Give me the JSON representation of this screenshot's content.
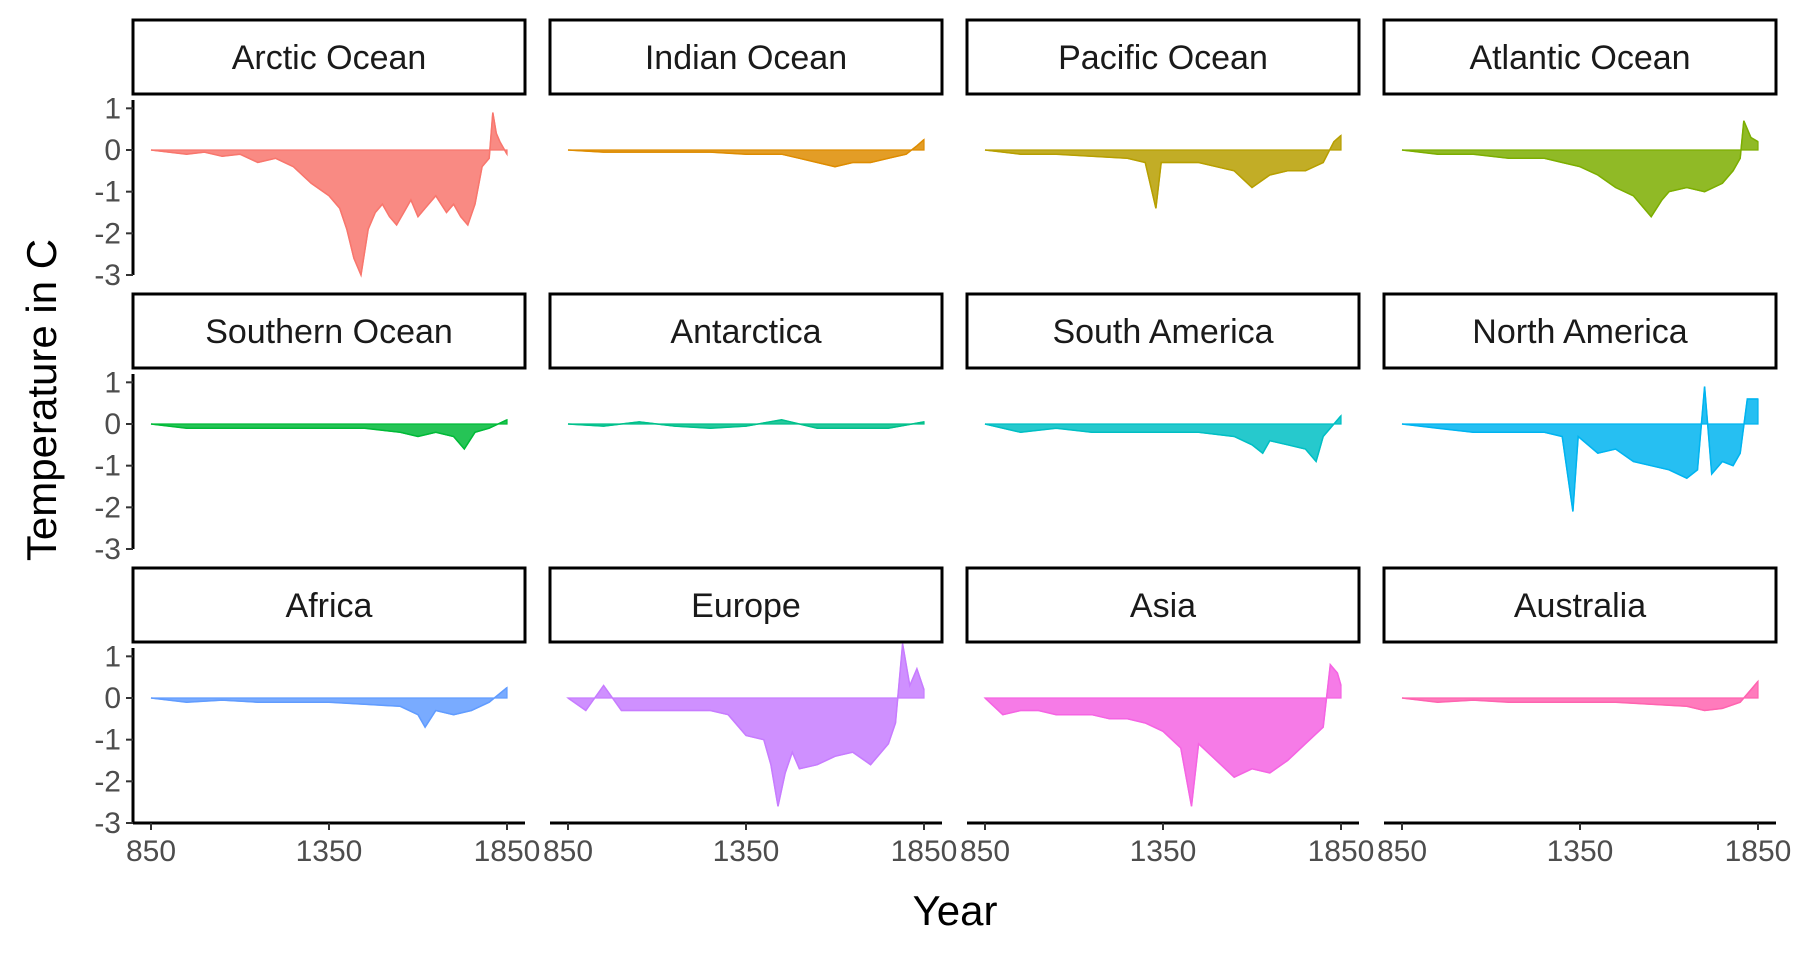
{
  "chart_data": {
    "type": "area",
    "layout": "faceted-grid",
    "facet_rows": 3,
    "facet_cols": 4,
    "xlabel": "Year",
    "ylabel": "Temperature in C",
    "xlim": [
      850,
      1850
    ],
    "ylim": [
      -3,
      1.2
    ],
    "x_ticks": [
      850,
      1350,
      1850
    ],
    "x_tick_labels": [
      "850",
      "1350",
      "1850"
    ],
    "y_ticks": [
      1,
      0,
      -1,
      -2,
      -3
    ],
    "y_tick_labels": [
      "1",
      "0",
      "-1",
      "-2",
      "-3"
    ],
    "grid": false,
    "legend": "none",
    "series": [
      {
        "name": "Arctic Ocean",
        "color": "#F8766D",
        "points": [
          [
            850,
            0
          ],
          [
            900,
            -0.05
          ],
          [
            950,
            -0.1
          ],
          [
            1000,
            -0.05
          ],
          [
            1050,
            -0.15
          ],
          [
            1100,
            -0.1
          ],
          [
            1150,
            -0.3
          ],
          [
            1200,
            -0.2
          ],
          [
            1250,
            -0.4
          ],
          [
            1300,
            -0.8
          ],
          [
            1350,
            -1.1
          ],
          [
            1380,
            -1.4
          ],
          [
            1400,
            -1.9
          ],
          [
            1420,
            -2.6
          ],
          [
            1440,
            -3.0
          ],
          [
            1460,
            -1.9
          ],
          [
            1480,
            -1.5
          ],
          [
            1500,
            -1.3
          ],
          [
            1520,
            -1.6
          ],
          [
            1540,
            -1.8
          ],
          [
            1560,
            -1.5
          ],
          [
            1580,
            -1.2
          ],
          [
            1600,
            -1.6
          ],
          [
            1620,
            -1.4
          ],
          [
            1650,
            -1.1
          ],
          [
            1680,
            -1.5
          ],
          [
            1700,
            -1.3
          ],
          [
            1720,
            -1.6
          ],
          [
            1740,
            -1.8
          ],
          [
            1760,
            -1.3
          ],
          [
            1780,
            -0.4
          ],
          [
            1800,
            -0.2
          ],
          [
            1810,
            0.9
          ],
          [
            1820,
            0.4
          ],
          [
            1830,
            0.2
          ],
          [
            1850,
            -0.1
          ]
        ]
      },
      {
        "name": "Indian Ocean",
        "color": "#DE8C00",
        "points": [
          [
            850,
            0
          ],
          [
            950,
            -0.05
          ],
          [
            1050,
            -0.05
          ],
          [
            1150,
            -0.05
          ],
          [
            1250,
            -0.05
          ],
          [
            1350,
            -0.1
          ],
          [
            1450,
            -0.1
          ],
          [
            1500,
            -0.2
          ],
          [
            1550,
            -0.3
          ],
          [
            1600,
            -0.4
          ],
          [
            1650,
            -0.3
          ],
          [
            1700,
            -0.3
          ],
          [
            1750,
            -0.2
          ],
          [
            1800,
            -0.1
          ],
          [
            1830,
            0.1
          ],
          [
            1850,
            0.25
          ]
        ]
      },
      {
        "name": "Pacific Ocean",
        "color": "#B79F00",
        "points": [
          [
            850,
            0
          ],
          [
            950,
            -0.1
          ],
          [
            1050,
            -0.1
          ],
          [
            1150,
            -0.15
          ],
          [
            1250,
            -0.2
          ],
          [
            1300,
            -0.3
          ],
          [
            1330,
            -1.4
          ],
          [
            1345,
            -0.3
          ],
          [
            1400,
            -0.3
          ],
          [
            1450,
            -0.3
          ],
          [
            1500,
            -0.4
          ],
          [
            1550,
            -0.5
          ],
          [
            1600,
            -0.9
          ],
          [
            1650,
            -0.6
          ],
          [
            1700,
            -0.5
          ],
          [
            1750,
            -0.5
          ],
          [
            1800,
            -0.3
          ],
          [
            1830,
            0.2
          ],
          [
            1850,
            0.35
          ]
        ]
      },
      {
        "name": "Atlantic Ocean",
        "color": "#7CAE00",
        "points": [
          [
            850,
            0
          ],
          [
            950,
            -0.1
          ],
          [
            1050,
            -0.1
          ],
          [
            1150,
            -0.2
          ],
          [
            1250,
            -0.2
          ],
          [
            1300,
            -0.3
          ],
          [
            1350,
            -0.4
          ],
          [
            1400,
            -0.6
          ],
          [
            1450,
            -0.9
          ],
          [
            1500,
            -1.1
          ],
          [
            1550,
            -1.6
          ],
          [
            1580,
            -1.2
          ],
          [
            1600,
            -1.0
          ],
          [
            1650,
            -0.9
          ],
          [
            1700,
            -1.0
          ],
          [
            1750,
            -0.8
          ],
          [
            1780,
            -0.5
          ],
          [
            1800,
            -0.2
          ],
          [
            1810,
            0.7
          ],
          [
            1830,
            0.3
          ],
          [
            1850,
            0.2
          ]
        ]
      },
      {
        "name": "Southern Ocean",
        "color": "#00BA38",
        "points": [
          [
            850,
            0
          ],
          [
            950,
            -0.1
          ],
          [
            1050,
            -0.1
          ],
          [
            1150,
            -0.1
          ],
          [
            1250,
            -0.1
          ],
          [
            1350,
            -0.1
          ],
          [
            1450,
            -0.1
          ],
          [
            1550,
            -0.2
          ],
          [
            1600,
            -0.3
          ],
          [
            1650,
            -0.2
          ],
          [
            1700,
            -0.3
          ],
          [
            1730,
            -0.6
          ],
          [
            1760,
            -0.2
          ],
          [
            1800,
            -0.1
          ],
          [
            1850,
            0.1
          ]
        ]
      },
      {
        "name": "Antarctica",
        "color": "#00C08B",
        "points": [
          [
            850,
            0
          ],
          [
            950,
            -0.05
          ],
          [
            1050,
            0.05
          ],
          [
            1150,
            -0.05
          ],
          [
            1250,
            -0.1
          ],
          [
            1350,
            -0.05
          ],
          [
            1450,
            0.1
          ],
          [
            1550,
            -0.1
          ],
          [
            1650,
            -0.1
          ],
          [
            1750,
            -0.1
          ],
          [
            1850,
            0.05
          ]
        ]
      },
      {
        "name": "South America",
        "color": "#00BFC4",
        "points": [
          [
            850,
            0
          ],
          [
            950,
            -0.2
          ],
          [
            1050,
            -0.1
          ],
          [
            1150,
            -0.2
          ],
          [
            1250,
            -0.2
          ],
          [
            1350,
            -0.2
          ],
          [
            1450,
            -0.2
          ],
          [
            1550,
            -0.3
          ],
          [
            1600,
            -0.5
          ],
          [
            1630,
            -0.7
          ],
          [
            1650,
            -0.4
          ],
          [
            1700,
            -0.5
          ],
          [
            1750,
            -0.6
          ],
          [
            1780,
            -0.9
          ],
          [
            1800,
            -0.3
          ],
          [
            1850,
            0.2
          ]
        ]
      },
      {
        "name": "North America",
        "color": "#00B4F0",
        "points": [
          [
            850,
            0
          ],
          [
            950,
            -0.1
          ],
          [
            1050,
            -0.2
          ],
          [
            1150,
            -0.2
          ],
          [
            1250,
            -0.2
          ],
          [
            1300,
            -0.3
          ],
          [
            1330,
            -2.1
          ],
          [
            1345,
            -0.3
          ],
          [
            1400,
            -0.7
          ],
          [
            1450,
            -0.6
          ],
          [
            1500,
            -0.9
          ],
          [
            1550,
            -1.0
          ],
          [
            1600,
            -1.1
          ],
          [
            1650,
            -1.3
          ],
          [
            1680,
            -1.1
          ],
          [
            1700,
            0.9
          ],
          [
            1720,
            -1.2
          ],
          [
            1750,
            -0.9
          ],
          [
            1780,
            -1.0
          ],
          [
            1800,
            -0.7
          ],
          [
            1820,
            0.6
          ],
          [
            1850,
            0.6
          ]
        ]
      },
      {
        "name": "Africa",
        "color": "#619CFF",
        "points": [
          [
            850,
            0
          ],
          [
            950,
            -0.1
          ],
          [
            1050,
            -0.05
          ],
          [
            1150,
            -0.1
          ],
          [
            1250,
            -0.1
          ],
          [
            1350,
            -0.1
          ],
          [
            1450,
            -0.15
          ],
          [
            1550,
            -0.2
          ],
          [
            1600,
            -0.4
          ],
          [
            1620,
            -0.7
          ],
          [
            1650,
            -0.3
          ],
          [
            1700,
            -0.4
          ],
          [
            1750,
            -0.3
          ],
          [
            1800,
            -0.1
          ],
          [
            1850,
            0.25
          ]
        ]
      },
      {
        "name": "Europe",
        "color": "#C77CFF",
        "points": [
          [
            850,
            0
          ],
          [
            900,
            -0.3
          ],
          [
            950,
            0.3
          ],
          [
            1000,
            -0.3
          ],
          [
            1050,
            -0.3
          ],
          [
            1100,
            -0.3
          ],
          [
            1150,
            -0.3
          ],
          [
            1200,
            -0.3
          ],
          [
            1250,
            -0.3
          ],
          [
            1300,
            -0.4
          ],
          [
            1350,
            -0.9
          ],
          [
            1400,
            -1.0
          ],
          [
            1420,
            -1.6
          ],
          [
            1440,
            -2.6
          ],
          [
            1460,
            -1.8
          ],
          [
            1480,
            -1.3
          ],
          [
            1500,
            -1.7
          ],
          [
            1550,
            -1.6
          ],
          [
            1600,
            -1.4
          ],
          [
            1650,
            -1.3
          ],
          [
            1700,
            -1.6
          ],
          [
            1750,
            -1.1
          ],
          [
            1770,
            -0.6
          ],
          [
            1790,
            1.3
          ],
          [
            1810,
            0.3
          ],
          [
            1830,
            0.7
          ],
          [
            1850,
            0.2
          ]
        ]
      },
      {
        "name": "Asia",
        "color": "#F564E3",
        "points": [
          [
            850,
            0
          ],
          [
            900,
            -0.4
          ],
          [
            950,
            -0.3
          ],
          [
            1000,
            -0.3
          ],
          [
            1050,
            -0.4
          ],
          [
            1100,
            -0.4
          ],
          [
            1150,
            -0.4
          ],
          [
            1200,
            -0.5
          ],
          [
            1250,
            -0.5
          ],
          [
            1300,
            -0.6
          ],
          [
            1350,
            -0.8
          ],
          [
            1400,
            -1.2
          ],
          [
            1430,
            -2.6
          ],
          [
            1450,
            -1.1
          ],
          [
            1500,
            -1.5
          ],
          [
            1550,
            -1.9
          ],
          [
            1600,
            -1.7
          ],
          [
            1650,
            -1.8
          ],
          [
            1700,
            -1.5
          ],
          [
            1750,
            -1.1
          ],
          [
            1800,
            -0.7
          ],
          [
            1820,
            0.8
          ],
          [
            1840,
            0.6
          ],
          [
            1850,
            0.3
          ]
        ]
      },
      {
        "name": "Australia",
        "color": "#FF64B0",
        "points": [
          [
            850,
            0
          ],
          [
            950,
            -0.1
          ],
          [
            1050,
            -0.05
          ],
          [
            1150,
            -0.1
          ],
          [
            1250,
            -0.1
          ],
          [
            1350,
            -0.1
          ],
          [
            1450,
            -0.1
          ],
          [
            1550,
            -0.15
          ],
          [
            1650,
            -0.2
          ],
          [
            1700,
            -0.3
          ],
          [
            1750,
            -0.25
          ],
          [
            1800,
            -0.1
          ],
          [
            1830,
            0.2
          ],
          [
            1850,
            0.4
          ]
        ]
      }
    ]
  }
}
